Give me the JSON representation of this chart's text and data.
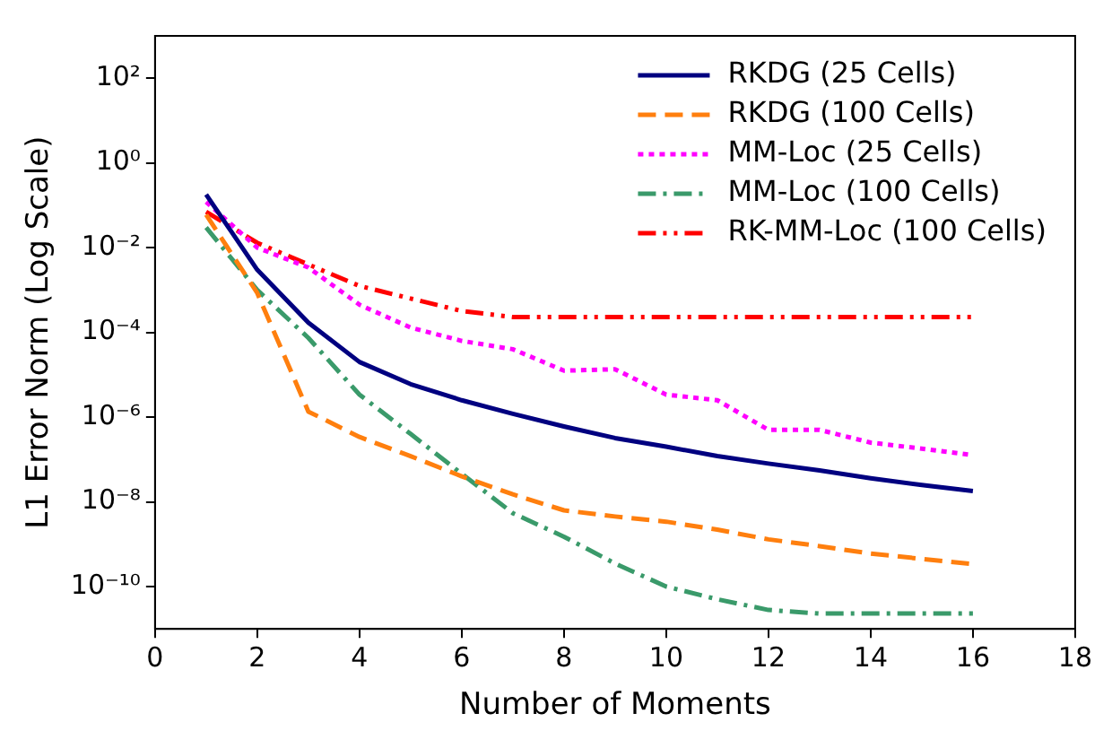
{
  "chart_data": {
    "type": "line",
    "xlabel": "Number of Moments",
    "ylabel": "L1 Error Norm (Log Scale)",
    "x": [
      1,
      2,
      3,
      4,
      5,
      6,
      7,
      8,
      9,
      10,
      11,
      12,
      13,
      14,
      15,
      16
    ],
    "series": [
      {
        "name": "RKDG (25 Cells)",
        "color": "#000080",
        "line_style": "solid",
        "values": [
          0.18,
          0.003,
          0.00017,
          2e-05,
          6e-06,
          2.5e-06,
          1.2e-06,
          6e-07,
          3.2e-07,
          2e-07,
          1.2e-07,
          8e-08,
          5.5e-08,
          3.6e-08,
          2.5e-08,
          1.8e-08
        ]
      },
      {
        "name": "RKDG (100 Cells)",
        "color": "#ff7f0e",
        "line_style": "dashed",
        "values": [
          0.06,
          0.00085,
          1.35e-06,
          3.4e-07,
          1.2e-07,
          4e-08,
          1.5e-08,
          6.3e-09,
          4.5e-09,
          3.4e-09,
          2.2e-09,
          1.3e-09,
          9e-10,
          6e-10,
          4.5e-10,
          3.4e-10
        ]
      },
      {
        "name": "MM-Loc (25 Cells)",
        "color": "#ff00ff",
        "line_style": "dotted",
        "values": [
          0.12,
          0.01,
          0.0034,
          0.00045,
          0.00013,
          6.3e-05,
          4e-05,
          1.25e-05,
          1.35e-05,
          3.4e-06,
          2.5e-06,
          5e-07,
          5e-07,
          2.5e-07,
          1.8e-07,
          1.26e-07
        ]
      },
      {
        "name": "MM-Loc (100 Cells)",
        "color": "#3a9a6a",
        "line_style": "dashdot",
        "values": [
          0.03,
          0.001,
          7.4e-05,
          3.4e-06,
          4e-07,
          4.6e-08,
          5.4e-09,
          1.5e-09,
          3.5e-10,
          1e-10,
          5e-11,
          2.8e-11,
          2.3e-11,
          2.3e-11,
          2.3e-11,
          2.3e-11
        ]
      },
      {
        "name": "RK-MM-Loc (100 Cells)",
        "color": "#ff0000",
        "line_style": "dashdotdot",
        "values": [
          0.07,
          0.013,
          0.004,
          0.00125,
          0.00063,
          0.00032,
          0.00023,
          0.00023,
          0.00023,
          0.00023,
          0.00023,
          0.00023,
          0.00023,
          0.00023,
          0.00023,
          0.00023
        ]
      }
    ],
    "xlim": [
      0,
      18
    ],
    "xticks": [
      0,
      2,
      4,
      6,
      8,
      10,
      12,
      14,
      16,
      18
    ],
    "ylim": [
      1e-11,
      1000
    ],
    "yticks": [
      {
        "value": 100,
        "label": "10²"
      },
      {
        "value": 1,
        "label": "10⁰"
      },
      {
        "value": 0.01,
        "label": "10⁻²"
      },
      {
        "value": 0.0001,
        "label": "10⁻⁴"
      },
      {
        "value": 1e-06,
        "label": "10⁻⁶"
      },
      {
        "value": 1e-08,
        "label": "10⁻⁸"
      },
      {
        "value": 1e-10,
        "label": "10⁻¹⁰"
      }
    ],
    "log": "y",
    "grid": false,
    "legend": "top right",
    "marker": "none"
  }
}
